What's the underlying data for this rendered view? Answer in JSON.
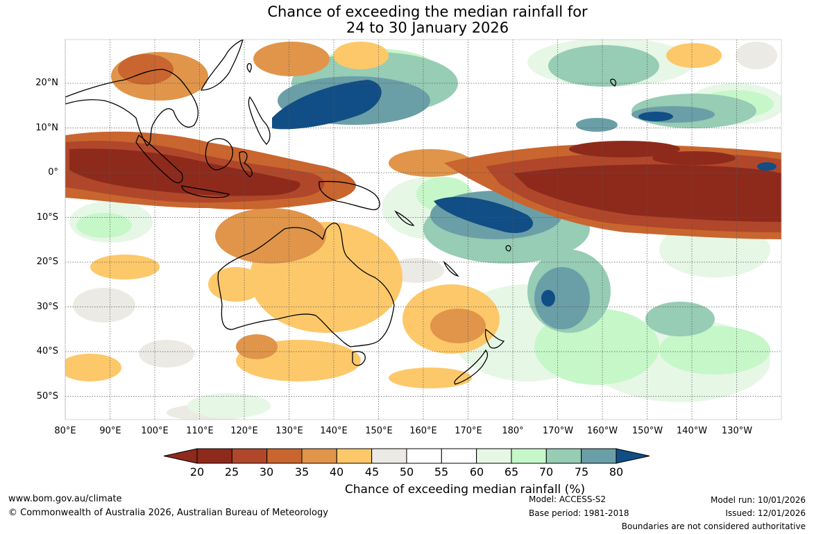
{
  "title": {
    "line1": "Chance of exceeding the median rainfall for",
    "line2": "24 to 30 January 2026"
  },
  "map": {
    "lat_labels": [
      "20°N",
      "10°N",
      "0°",
      "10°S",
      "20°S",
      "30°S",
      "40°S",
      "50°S"
    ],
    "lon_labels": [
      "80°E",
      "90°E",
      "100°E",
      "110°E",
      "120°E",
      "130°E",
      "140°E",
      "150°E",
      "160°E",
      "170°E",
      "180°",
      "170°W",
      "160°W",
      "150°W",
      "140°W",
      "130°W"
    ],
    "palette": {
      "c20": "#8e2a1c",
      "c25": "#b0472a",
      "c30": "#c9652f",
      "c35": "#e0954a",
      "c40": "#fdc86a",
      "c45": "#eceae4",
      "c50": "#ffffff",
      "c55": "#ffffff",
      "c60": "#e6f7e6",
      "c65": "#c6f7c8",
      "c70": "#97ccb5",
      "c75": "#6b9fa7",
      "c80": "#457c96",
      "c85": "#104e85"
    }
  },
  "colorbar": {
    "ticks": [
      "20",
      "25",
      "30",
      "35",
      "40",
      "45",
      "50",
      "55",
      "60",
      "65",
      "70",
      "75",
      "80"
    ],
    "label": "Chance of exceeding median rainfall (%)"
  },
  "footer": {
    "website": "www.bom.gov.au/climate",
    "copyright": "© Commonwealth of Australia 2026, Australian Bureau of Meteorology",
    "model": "Model: ACCESS-S2",
    "base_period": "Base period: 1981-2018",
    "model_run": "Model run: 10/01/2026",
    "issued": "Issued: 12/01/2026",
    "disclaimer": "Boundaries are not considered authoritative"
  }
}
